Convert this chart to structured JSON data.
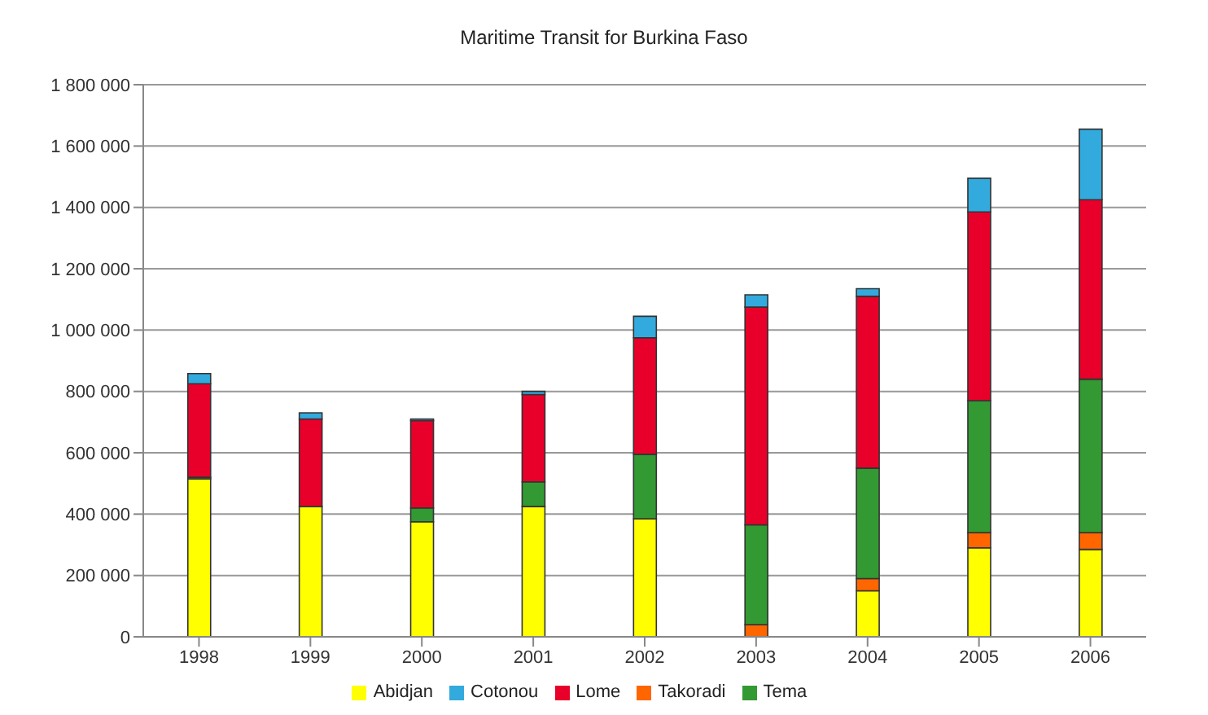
{
  "chart_data": {
    "type": "bar",
    "stacked": true,
    "title": "Maritime Transit for Burkina Faso",
    "categories": [
      "1998",
      "1999",
      "2000",
      "2001",
      "2002",
      "2003",
      "2004",
      "2005",
      "2006"
    ],
    "series": [
      {
        "name": "Abidjan",
        "color": "#ffff00",
        "values": [
          515000,
          425000,
          375000,
          425000,
          385000,
          0,
          150000,
          290000,
          285000
        ]
      },
      {
        "name": "Takoradi",
        "color": "#ff6600",
        "values": [
          0,
          0,
          0,
          0,
          0,
          40000,
          40000,
          50000,
          55000
        ]
      },
      {
        "name": "Tema",
        "color": "#339933",
        "values": [
          5000,
          0,
          45000,
          80000,
          210000,
          325000,
          360000,
          430000,
          500000
        ]
      },
      {
        "name": "Lome",
        "color": "#e8002a",
        "values": [
          305000,
          285000,
          285000,
          285000,
          380000,
          710000,
          560000,
          615000,
          585000
        ]
      },
      {
        "name": "Cotonou",
        "color": "#33aadd",
        "values": [
          33000,
          20000,
          5000,
          10000,
          70000,
          40000,
          25000,
          110000,
          230000
        ]
      }
    ],
    "ylim": [
      0,
      1800000
    ],
    "yticks": [
      {
        "value": 0,
        "label": "0"
      },
      {
        "value": 200000,
        "label": "200 000"
      },
      {
        "value": 400000,
        "label": "400 000"
      },
      {
        "value": 600000,
        "label": "600 000"
      },
      {
        "value": 800000,
        "label": "800 000"
      },
      {
        "value": 1000000,
        "label": "1 000 000"
      },
      {
        "value": 1200000,
        "label": "1 200 000"
      },
      {
        "value": 1400000,
        "label": "1 400 000"
      },
      {
        "value": 1600000,
        "label": "1 600 000"
      },
      {
        "value": 1800000,
        "label": "1 800 000"
      }
    ],
    "grid": "y",
    "legend": "bottom"
  }
}
